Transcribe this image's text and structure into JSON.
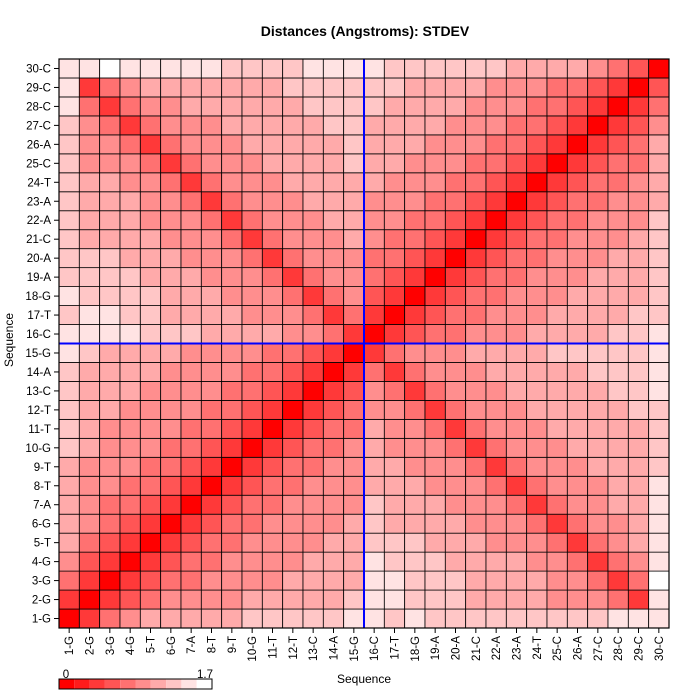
{
  "chart_data": {
    "type": "heatmap",
    "title": "Distances (Angstroms):  STDEV",
    "xlabel": "Sequence",
    "ylabel": "Sequence",
    "labels": [
      "1-G",
      "2-G",
      "3-G",
      "4-G",
      "5-T",
      "6-G",
      "7-A",
      "8-T",
      "9-T",
      "10-G",
      "11-T",
      "12-T",
      "13-C",
      "14-A",
      "15-G",
      "16-C",
      "17-T",
      "18-G",
      "19-A",
      "20-A",
      "21-C",
      "22-A",
      "23-A",
      "24-T",
      "25-C",
      "26-A",
      "27-C",
      "28-C",
      "29-C",
      "30-C"
    ],
    "scale_min": 0,
    "scale_max": 1.7,
    "scale_min_label": "0",
    "scale_max_label": "1.7",
    "color_low": "#ff0000",
    "color_high": "#ffffff",
    "legend_levels": 10,
    "highlight_after": "15-G",
    "highlight_color": "#0000ff",
    "grid": true,
    "values_note_rows_from_bottom": true,
    "values": [
      [
        0.0,
        0.4,
        0.7,
        1.0,
        1.05,
        1.1,
        1.1,
        1.15,
        1.2,
        1.25,
        1.25,
        1.3,
        1.3,
        1.4,
        1.45,
        1.5,
        1.4,
        1.45,
        1.4,
        1.4,
        1.35,
        1.4,
        1.35,
        1.35,
        1.35,
        1.4,
        1.4,
        1.45,
        1.45,
        1.6
      ],
      [
        0.4,
        0.0,
        0.4,
        0.6,
        0.75,
        0.85,
        0.9,
        0.95,
        1.0,
        1.05,
        1.05,
        1.1,
        1.1,
        1.2,
        1.25,
        1.55,
        1.45,
        1.35,
        1.3,
        1.25,
        1.2,
        1.2,
        1.1,
        1.1,
        1.0,
        0.9,
        0.85,
        0.7,
        0.45,
        1.5
      ],
      [
        0.7,
        0.4,
        0.0,
        0.4,
        0.6,
        0.7,
        0.8,
        0.9,
        0.95,
        1.0,
        1.0,
        1.05,
        1.1,
        1.15,
        1.2,
        1.55,
        1.45,
        1.35,
        1.3,
        1.25,
        1.2,
        1.2,
        1.1,
        1.05,
        0.95,
        0.85,
        0.7,
        0.45,
        0.7,
        1.7
      ],
      [
        1.0,
        0.6,
        0.4,
        0.0,
        0.4,
        0.6,
        0.7,
        0.8,
        0.9,
        0.95,
        1.0,
        1.0,
        1.05,
        1.1,
        1.15,
        1.5,
        1.4,
        1.3,
        1.25,
        1.2,
        1.15,
        1.1,
        1.05,
        0.95,
        0.85,
        0.7,
        0.45,
        0.75,
        0.95,
        1.55
      ],
      [
        1.05,
        0.75,
        0.6,
        0.4,
        0.0,
        0.4,
        0.6,
        0.7,
        0.8,
        0.9,
        0.95,
        1.0,
        1.0,
        1.05,
        1.1,
        1.4,
        1.3,
        1.25,
        1.2,
        1.15,
        1.05,
        1.0,
        0.95,
        0.85,
        0.7,
        0.45,
        0.7,
        0.9,
        1.05,
        1.45
      ],
      [
        1.1,
        0.85,
        0.7,
        0.6,
        0.4,
        0.0,
        0.4,
        0.6,
        0.7,
        0.8,
        0.9,
        0.95,
        1.0,
        1.0,
        1.05,
        1.3,
        1.2,
        1.15,
        1.1,
        1.05,
        1.0,
        0.95,
        0.85,
        0.7,
        0.45,
        0.7,
        0.9,
        1.0,
        1.1,
        1.45
      ],
      [
        1.1,
        0.9,
        0.8,
        0.7,
        0.6,
        0.4,
        0.0,
        0.4,
        0.6,
        0.7,
        0.8,
        0.9,
        0.95,
        1.0,
        1.0,
        1.25,
        1.15,
        1.1,
        1.05,
        1.0,
        0.95,
        0.85,
        0.7,
        0.45,
        0.7,
        0.85,
        0.95,
        1.05,
        1.15,
        1.45
      ],
      [
        1.15,
        0.95,
        0.9,
        0.8,
        0.7,
        0.6,
        0.4,
        0.0,
        0.4,
        0.6,
        0.7,
        0.8,
        0.9,
        0.95,
        1.0,
        1.2,
        1.1,
        1.05,
        1.0,
        0.95,
        0.85,
        0.7,
        0.45,
        0.7,
        0.85,
        0.95,
        1.0,
        1.1,
        1.15,
        1.45
      ],
      [
        1.2,
        1.0,
        0.95,
        0.9,
        0.8,
        0.7,
        0.6,
        0.4,
        0.0,
        0.4,
        0.6,
        0.7,
        0.8,
        0.9,
        0.95,
        1.15,
        1.05,
        1.0,
        0.95,
        0.85,
        0.7,
        0.45,
        0.7,
        0.85,
        0.95,
        1.0,
        1.05,
        1.1,
        1.15,
        1.4
      ],
      [
        1.25,
        1.05,
        1.0,
        0.95,
        0.9,
        0.8,
        0.7,
        0.6,
        0.4,
        0.0,
        0.4,
        0.6,
        0.7,
        0.8,
        0.9,
        1.1,
        1.0,
        0.95,
        0.85,
        0.7,
        0.45,
        0.7,
        0.85,
        0.95,
        1.0,
        1.05,
        1.1,
        1.15,
        1.2,
        1.4
      ],
      [
        1.25,
        1.05,
        1.0,
        1.0,
        0.95,
        0.9,
        0.8,
        0.7,
        0.6,
        0.4,
        0.0,
        0.4,
        0.6,
        0.7,
        0.8,
        1.05,
        0.95,
        0.85,
        0.7,
        0.45,
        0.7,
        0.85,
        0.95,
        1.0,
        1.05,
        1.1,
        1.15,
        1.15,
        1.2,
        1.4
      ],
      [
        1.3,
        1.1,
        1.05,
        1.0,
        1.0,
        0.95,
        0.9,
        0.8,
        0.7,
        0.6,
        0.4,
        0.0,
        0.4,
        0.6,
        0.7,
        0.95,
        0.85,
        0.7,
        0.45,
        0.7,
        0.85,
        0.95,
        1.0,
        1.05,
        1.1,
        1.15,
        1.15,
        1.2,
        1.25,
        1.4
      ],
      [
        1.3,
        1.1,
        1.1,
        1.05,
        1.0,
        1.0,
        0.95,
        0.9,
        0.8,
        0.7,
        0.6,
        0.4,
        0.0,
        0.4,
        0.6,
        0.85,
        0.7,
        0.45,
        0.7,
        0.85,
        0.95,
        1.0,
        1.05,
        1.1,
        1.15,
        1.15,
        1.2,
        1.25,
        1.3,
        1.45
      ],
      [
        1.4,
        1.2,
        1.15,
        1.1,
        1.05,
        1.0,
        1.0,
        0.95,
        0.9,
        0.8,
        0.7,
        0.6,
        0.4,
        0.0,
        0.4,
        0.7,
        0.45,
        0.7,
        0.85,
        0.95,
        1.0,
        1.05,
        1.1,
        1.15,
        1.2,
        1.2,
        1.25,
        1.3,
        1.35,
        1.45
      ],
      [
        1.45,
        1.25,
        1.2,
        1.15,
        1.1,
        1.05,
        1.0,
        1.0,
        0.95,
        0.9,
        0.8,
        0.7,
        0.6,
        0.4,
        0.0,
        0.35,
        0.7,
        0.85,
        0.95,
        1.0,
        1.05,
        1.1,
        1.15,
        1.2,
        1.25,
        1.25,
        1.3,
        1.35,
        1.4,
        1.5
      ],
      [
        1.5,
        1.55,
        1.55,
        1.5,
        1.4,
        1.3,
        1.25,
        1.2,
        1.15,
        1.1,
        1.05,
        0.95,
        0.85,
        0.7,
        0.35,
        0.0,
        0.4,
        0.6,
        0.7,
        0.8,
        0.9,
        0.95,
        1.0,
        1.05,
        1.1,
        1.15,
        1.2,
        1.25,
        1.3,
        1.55
      ],
      [
        1.4,
        1.45,
        1.45,
        1.4,
        1.3,
        1.2,
        1.15,
        1.1,
        1.05,
        1.0,
        0.95,
        0.85,
        0.7,
        0.45,
        0.7,
        0.4,
        0.0,
        0.4,
        0.6,
        0.7,
        0.8,
        0.9,
        0.95,
        1.0,
        1.05,
        1.1,
        1.15,
        1.2,
        1.25,
        1.35
      ],
      [
        1.45,
        1.35,
        1.35,
        1.3,
        1.25,
        1.15,
        1.1,
        1.05,
        1.0,
        0.95,
        0.85,
        0.7,
        0.45,
        0.7,
        0.85,
        0.6,
        0.4,
        0.0,
        0.4,
        0.6,
        0.7,
        0.8,
        0.9,
        0.95,
        1.0,
        1.05,
        1.1,
        1.15,
        1.2,
        1.35
      ],
      [
        1.4,
        1.3,
        1.3,
        1.25,
        1.2,
        1.1,
        1.05,
        1.0,
        0.95,
        0.85,
        0.7,
        0.45,
        0.7,
        0.85,
        0.95,
        0.7,
        0.6,
        0.4,
        0.0,
        0.4,
        0.6,
        0.7,
        0.8,
        0.9,
        0.95,
        1.0,
        1.05,
        1.1,
        1.15,
        1.3
      ],
      [
        1.4,
        1.25,
        1.25,
        1.2,
        1.15,
        1.05,
        1.0,
        0.95,
        0.85,
        0.7,
        0.45,
        0.7,
        0.85,
        0.95,
        1.0,
        0.8,
        0.7,
        0.6,
        0.4,
        0.0,
        0.4,
        0.6,
        0.7,
        0.8,
        0.9,
        0.95,
        1.0,
        1.05,
        1.1,
        1.3
      ],
      [
        1.35,
        1.2,
        1.2,
        1.15,
        1.05,
        1.0,
        0.95,
        0.85,
        0.7,
        0.45,
        0.7,
        0.85,
        0.95,
        1.0,
        1.05,
        0.9,
        0.8,
        0.7,
        0.6,
        0.4,
        0.0,
        0.4,
        0.6,
        0.7,
        0.8,
        0.9,
        0.95,
        1.0,
        1.05,
        1.25
      ],
      [
        1.4,
        1.2,
        1.2,
        1.1,
        1.0,
        0.95,
        0.85,
        0.7,
        0.45,
        0.7,
        0.85,
        0.95,
        1.0,
        1.05,
        1.1,
        0.95,
        0.9,
        0.8,
        0.7,
        0.6,
        0.4,
        0.0,
        0.4,
        0.6,
        0.7,
        0.8,
        0.9,
        0.95,
        1.0,
        1.25
      ],
      [
        1.35,
        1.1,
        1.1,
        1.05,
        0.95,
        0.85,
        0.7,
        0.45,
        0.7,
        0.85,
        0.95,
        1.0,
        1.05,
        1.1,
        1.15,
        1.0,
        0.95,
        0.9,
        0.8,
        0.7,
        0.6,
        0.4,
        0.0,
        0.4,
        0.6,
        0.7,
        0.8,
        0.9,
        0.95,
        1.2
      ],
      [
        1.35,
        1.1,
        1.05,
        0.95,
        0.85,
        0.7,
        0.45,
        0.7,
        0.85,
        0.95,
        1.0,
        1.05,
        1.1,
        1.15,
        1.2,
        1.05,
        1.0,
        0.95,
        0.9,
        0.8,
        0.7,
        0.6,
        0.4,
        0.0,
        0.4,
        0.6,
        0.7,
        0.8,
        0.9,
        1.2
      ],
      [
        1.35,
        1.0,
        0.95,
        0.85,
        0.7,
        0.45,
        0.7,
        0.85,
        0.95,
        1.0,
        1.05,
        1.1,
        1.15,
        1.2,
        1.25,
        1.1,
        1.05,
        1.0,
        0.95,
        0.9,
        0.8,
        0.7,
        0.6,
        0.4,
        0.0,
        0.4,
        0.6,
        0.7,
        0.8,
        1.15
      ],
      [
        1.4,
        0.9,
        0.85,
        0.7,
        0.45,
        0.7,
        0.85,
        0.95,
        1.0,
        1.05,
        1.1,
        1.15,
        1.15,
        1.2,
        1.25,
        1.15,
        1.1,
        1.05,
        1.0,
        0.95,
        0.9,
        0.8,
        0.7,
        0.6,
        0.4,
        0.0,
        0.4,
        0.6,
        0.7,
        1.1
      ],
      [
        1.4,
        0.85,
        0.7,
        0.45,
        0.7,
        0.9,
        0.95,
        1.0,
        1.05,
        1.1,
        1.15,
        1.15,
        1.2,
        1.25,
        1.3,
        1.2,
        1.15,
        1.1,
        1.05,
        1.0,
        0.95,
        0.9,
        0.8,
        0.7,
        0.6,
        0.4,
        0.0,
        0.4,
        0.6,
        1.0
      ],
      [
        1.45,
        0.7,
        0.45,
        0.75,
        0.9,
        1.0,
        1.05,
        1.1,
        1.1,
        1.15,
        1.15,
        1.2,
        1.25,
        1.3,
        1.35,
        1.25,
        1.2,
        1.15,
        1.1,
        1.05,
        1.0,
        0.95,
        0.9,
        0.8,
        0.7,
        0.6,
        0.4,
        0.0,
        0.4,
        0.8
      ],
      [
        1.45,
        0.45,
        0.7,
        0.95,
        1.05,
        1.1,
        1.15,
        1.15,
        1.15,
        1.2,
        1.2,
        1.25,
        1.3,
        1.35,
        1.4,
        1.3,
        1.25,
        1.2,
        1.15,
        1.1,
        1.05,
        1.0,
        0.95,
        0.9,
        0.8,
        0.7,
        0.6,
        0.4,
        0.0,
        0.5
      ],
      [
        1.6,
        1.5,
        1.7,
        1.55,
        1.45,
        1.45,
        1.45,
        1.45,
        1.4,
        1.4,
        1.4,
        1.4,
        1.45,
        1.45,
        1.5,
        1.55,
        1.35,
        1.35,
        1.3,
        1.3,
        1.25,
        1.25,
        1.2,
        1.2,
        1.15,
        1.1,
        1.0,
        0.8,
        0.5,
        0.0
      ]
    ]
  }
}
